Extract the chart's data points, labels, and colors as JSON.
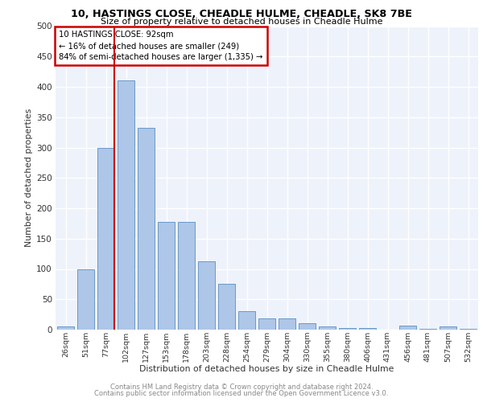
{
  "title": "10, HASTINGS CLOSE, CHEADLE HULME, CHEADLE, SK8 7BE",
  "subtitle": "Size of property relative to detached houses in Cheadle Hulme",
  "xlabel": "Distribution of detached houses by size in Cheadle Hulme",
  "ylabel": "Number of detached properties",
  "categories": [
    "26sqm",
    "51sqm",
    "77sqm",
    "102sqm",
    "127sqm",
    "153sqm",
    "178sqm",
    "203sqm",
    "228sqm",
    "254sqm",
    "279sqm",
    "304sqm",
    "330sqm",
    "355sqm",
    "380sqm",
    "406sqm",
    "431sqm",
    "456sqm",
    "481sqm",
    "507sqm",
    "532sqm"
  ],
  "values": [
    5,
    99,
    300,
    410,
    332,
    178,
    178,
    112,
    75,
    30,
    18,
    18,
    10,
    5,
    3,
    3,
    0,
    6,
    1,
    5,
    1
  ],
  "bar_color": "#aec6e8",
  "bar_edge_color": "#5a8fc2",
  "vline_color": "#cc0000",
  "vline_x": 2.425,
  "annotation_text": "10 HASTINGS CLOSE: 92sqm\n← 16% of detached houses are smaller (249)\n84% of semi-detached houses are larger (1,335) →",
  "annotation_box_color": "#cc0000",
  "annotation_fill": "#ffffff",
  "ylim": [
    0,
    500
  ],
  "yticks": [
    0,
    50,
    100,
    150,
    200,
    250,
    300,
    350,
    400,
    450,
    500
  ],
  "footer1": "Contains HM Land Registry data © Crown copyright and database right 2024.",
  "footer2": "Contains public sector information licensed under the Open Government Licence v3.0.",
  "plot_bg_color": "#eef2fb"
}
